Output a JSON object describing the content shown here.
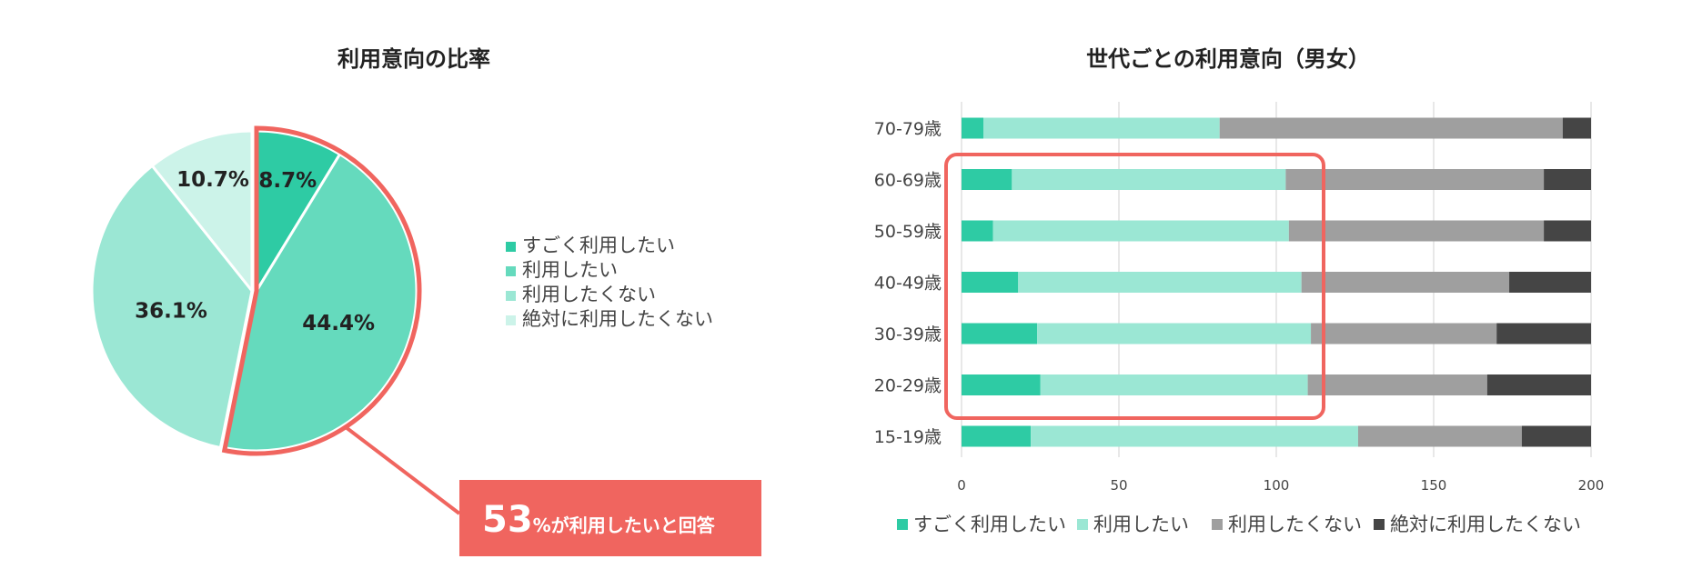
{
  "colors": {
    "c1": "#2ecba4",
    "c2": "#65dabd",
    "c3": "#9be7d4",
    "c4": "#ccf3e9",
    "bar_gray": "#9f9f9f",
    "bar_dark": "#454545",
    "accent": "#f0655f",
    "grid": "#d0d0d0"
  },
  "chart_data": [
    {
      "type": "pie",
      "title": "利用意向の比率",
      "categories": [
        "すごく利用したい",
        "利用したい",
        "利用したくない",
        "絶対に利用したくない"
      ],
      "values": [
        8.7,
        44.4,
        36.1,
        10.7
      ],
      "labels": [
        "8.7%",
        "44.4%",
        "36.1%",
        "10.7%"
      ],
      "legend_position": "right"
    },
    {
      "type": "bar",
      "orientation": "horizontal",
      "stacked": true,
      "title": "世代ごとの利用意向（男女）",
      "categories": [
        "70-79歳",
        "60-69歳",
        "50-59歳",
        "40-49歳",
        "30-39歳",
        "20-29歳",
        "15-19歳"
      ],
      "series": [
        {
          "name": "すごく利用したい",
          "values": [
            7,
            16,
            10,
            18,
            24,
            25,
            22
          ]
        },
        {
          "name": "利用したい",
          "values": [
            75,
            87,
            94,
            90,
            87,
            85,
            104
          ]
        },
        {
          "name": "利用したくない",
          "values": [
            109,
            82,
            81,
            66,
            59,
            57,
            52
          ]
        },
        {
          "name": "絶対に利用したくない",
          "values": [
            9,
            15,
            15,
            26,
            30,
            33,
            22
          ]
        }
      ],
      "xlim": [
        0,
        200
      ],
      "xticks": [
        "0",
        "50",
        "100",
        "150",
        "200"
      ],
      "legend_position": "bottom",
      "grid": true
    }
  ],
  "callout": {
    "big": "53",
    "small": "%が利用したいと回答"
  }
}
